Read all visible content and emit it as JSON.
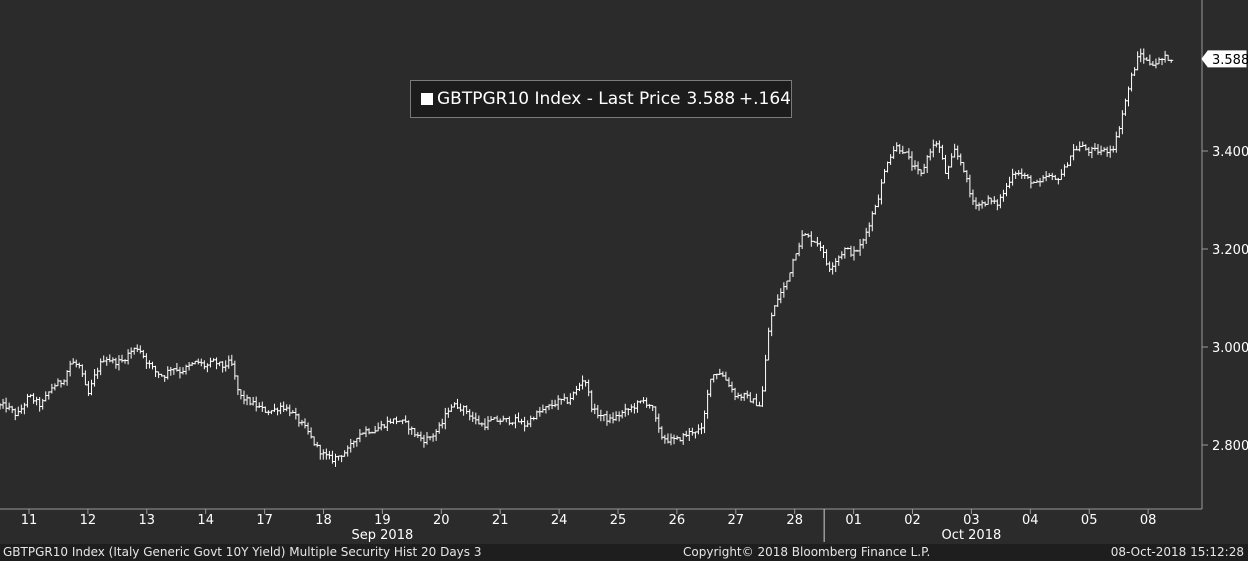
{
  "legend": {
    "prefix": "GBTPGR10 Index - Last Price",
    "last": "3.588",
    "change": "+.164"
  },
  "footer": {
    "left": "GBTPGR10 Index (Italy Generic Govt 10Y Yield) Multiple Security Hist   20 Days 3",
    "center": "Copyright© 2018 Bloomberg Finance L.P.",
    "right": "08-Oct-2018 15:12:28"
  },
  "colors": {
    "background": "#2b2b2b",
    "line": "#ffffff",
    "axis": "#9a9a9a",
    "footer_bg": "#1e1e1e",
    "legend_bg": "#1c1c1c"
  },
  "chart_data": {
    "type": "bar",
    "series": [
      {
        "name": "GBTPGR10 Index",
        "values": []
      }
    ],
    "x_ticks": [
      "11",
      "12",
      "13",
      "14",
      "17",
      "18",
      "19",
      "20",
      "21",
      "24",
      "25",
      "26",
      "27",
      "28",
      "01",
      "02",
      "03",
      "04",
      "05",
      "08"
    ],
    "x_month_labels": [
      {
        "label": "Sep 2018",
        "day": "19"
      },
      {
        "label": "Oct 2018",
        "day": "03"
      }
    ],
    "y_ticks": [
      "2.800",
      "3.000",
      "3.200",
      "3.400"
    ],
    "ylim": [
      2.69,
      3.69
    ],
    "last_value_label": "3.588",
    "grid": false,
    "daily_path": [
      [
        "11",
        [
          2.88,
          2.86,
          2.9,
          2.88,
          2.92
        ]
      ],
      [
        "12",
        [
          2.93,
          2.97,
          2.96,
          2.9,
          2.95,
          2.98,
          2.97
        ]
      ],
      [
        "13",
        [
          2.97,
          2.99,
          3.0,
          2.97,
          2.95,
          2.94,
          2.96
        ]
      ],
      [
        "14",
        [
          2.95,
          2.96,
          2.97,
          2.96,
          2.97,
          2.96,
          2.97
        ]
      ],
      [
        "17",
        [
          2.9,
          2.89,
          2.88,
          2.87,
          2.87,
          2.88,
          2.87
        ]
      ],
      [
        "18",
        [
          2.85,
          2.83,
          2.8,
          2.78,
          2.77,
          2.78,
          2.79
        ]
      ],
      [
        "19",
        [
          2.82,
          2.83,
          2.83,
          2.84,
          2.85,
          2.85,
          2.84
        ]
      ],
      [
        "20",
        [
          2.82,
          2.81,
          2.82,
          2.84,
          2.88,
          2.88,
          2.87
        ]
      ],
      [
        "21",
        [
          2.85,
          2.84,
          2.85,
          2.85,
          2.85,
          2.85,
          2.84
        ]
      ],
      [
        "24",
        [
          2.86,
          2.87,
          2.88,
          2.89,
          2.89,
          2.91,
          2.94
        ]
      ],
      [
        "25",
        [
          2.87,
          2.86,
          2.85,
          2.86,
          2.87,
          2.88,
          2.89
        ]
      ],
      [
        "26",
        [
          2.88,
          2.82,
          2.81,
          2.81,
          2.82,
          2.83,
          2.83
        ]
      ],
      [
        "27",
        [
          2.94,
          2.95,
          2.93,
          2.9,
          2.9,
          2.89,
          2.88
        ]
      ],
      [
        "28",
        [
          3.05,
          3.1,
          3.13,
          3.19,
          3.23,
          3.22,
          3.21
        ]
      ],
      [
        "01",
        [
          3.16,
          3.18,
          3.2,
          3.19,
          3.21,
          3.26,
          3.31
        ]
      ],
      [
        "02",
        [
          3.38,
          3.41,
          3.4,
          3.37,
          3.35,
          3.4,
          3.42
        ]
      ],
      [
        "03",
        [
          3.35,
          3.4,
          3.37,
          3.3,
          3.29,
          3.3,
          3.29
        ]
      ],
      [
        "04",
        [
          3.32,
          3.36,
          3.35,
          3.34,
          3.33,
          3.35,
          3.34
        ]
      ],
      [
        "05",
        [
          3.36,
          3.4,
          3.41,
          3.4,
          3.4,
          3.4,
          3.41
        ]
      ],
      [
        "08",
        [
          3.48,
          3.55,
          3.6,
          3.58,
          3.58,
          3.59,
          3.59
        ]
      ]
    ]
  }
}
